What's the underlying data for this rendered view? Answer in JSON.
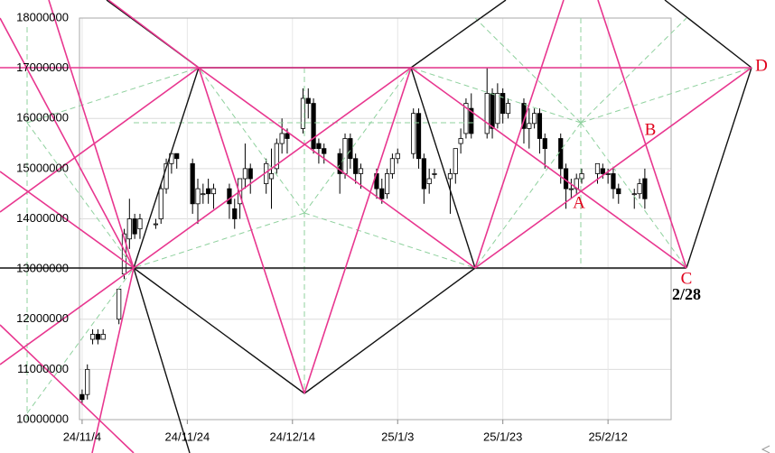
{
  "chart_data": {
    "type": "candlestick",
    "x": [
      0,
      1,
      2,
      3,
      4,
      7,
      8,
      9,
      10,
      11,
      14,
      15,
      16,
      17,
      18,
      21,
      22,
      23,
      24,
      25,
      28,
      29,
      30,
      31,
      32,
      35,
      36,
      37,
      38,
      39,
      42,
      43,
      44,
      45,
      46,
      49,
      50,
      51,
      52,
      53,
      56,
      57,
      58,
      59,
      60,
      63,
      64,
      65,
      66,
      67,
      70,
      71,
      72,
      73,
      74,
      77,
      78,
      79,
      80,
      81,
      84,
      85,
      86,
      87,
      88,
      91,
      92,
      93,
      94,
      95,
      98,
      99,
      100,
      101,
      102,
      105,
      106,
      107
    ],
    "open": [
      10500000,
      10500000,
      11600000,
      11700000,
      11600000,
      12000000,
      12900000,
      13600000,
      14000000,
      13800000,
      13900000,
      14000000,
      14600000,
      15100000,
      15300000,
      15100000,
      14300000,
      14500000,
      14600000,
      14500000,
      14600000,
      14200000,
      14300000,
      14800000,
      15000000,
      14700000,
      14800000,
      15000000,
      15500000,
      15700000,
      15800000,
      16400000,
      16300000,
      15500000,
      15400000,
      15300000,
      14900000,
      15600000,
      15200000,
      14900000,
      14900000,
      14600000,
      14500000,
      14900000,
      15200000,
      15300000,
      16100000,
      15200000,
      14700000,
      14900000,
      14800000,
      14900000,
      15500000,
      15700000,
      16200000,
      15700000,
      16500000,
      15900000,
      16500000,
      16100000,
      16300000,
      15800000,
      15900000,
      16100000,
      15600000,
      15600000,
      15000000,
      14600000,
      14600000,
      14800000,
      14900000,
      15000000,
      14900000,
      14900000,
      14600000,
      14500000,
      14500000,
      14800000
    ],
    "high": [
      10600000,
      11100000,
      11800000,
      11800000,
      11800000,
      12600000,
      13800000,
      14400000,
      14100000,
      14100000,
      14000000,
      14700000,
      15200000,
      15300000,
      15300000,
      15200000,
      14800000,
      14700000,
      14800000,
      14700000,
      14700000,
      14400000,
      14800000,
      15500000,
      15100000,
      15200000,
      15400000,
      15600000,
      16000000,
      15800000,
      16600000,
      16600000,
      16400000,
      15600000,
      15500000,
      15400000,
      15700000,
      15700000,
      15300000,
      15100000,
      15000000,
      14800000,
      15000000,
      15300000,
      15400000,
      16200000,
      16200000,
      15300000,
      15000000,
      15000000,
      15000000,
      15400000,
      15800000,
      16400000,
      16500000,
      17000000,
      16600000,
      16700000,
      16600000,
      16400000,
      16400000,
      16200000,
      16200000,
      16200000,
      15700000,
      15700000,
      15100000,
      14800000,
      14900000,
      15000000,
      15100000,
      15100000,
      15000000,
      15000000,
      14700000,
      14600000,
      14800000,
      15000000
    ],
    "low": [
      10300000,
      10400000,
      11500000,
      11500000,
      11600000,
      11900000,
      12800000,
      13400000,
      13600000,
      13600000,
      13800000,
      13900000,
      14500000,
      14900000,
      15000000,
      14100000,
      13900000,
      14300000,
      14300000,
      14200000,
      14000000,
      13800000,
      14000000,
      14600000,
      14500000,
      14500000,
      14200000,
      14900000,
      15300000,
      15300000,
      15700000,
      16000000,
      15300000,
      15100000,
      15100000,
      14500000,
      14800000,
      15000000,
      14700000,
      14600000,
      14400000,
      14300000,
      14400000,
      14800000,
      15100000,
      15200000,
      15000000,
      14300000,
      14500000,
      14800000,
      14100000,
      14700000,
      15300000,
      15600000,
      15600000,
      15600000,
      15600000,
      15800000,
      15900000,
      16000000,
      15500000,
      15400000,
      15800000,
      15300000,
      15000000,
      14700000,
      14200000,
      14400000,
      14500000,
      14700000,
      14700000,
      14800000,
      14700000,
      14400000,
      14300000,
      14200000,
      14400000,
      14200000
    ],
    "close": [
      10400000,
      11000000,
      11700000,
      11600000,
      11700000,
      12600000,
      13700000,
      14000000,
      13700000,
      14000000,
      13900000,
      14600000,
      15100000,
      15300000,
      15200000,
      14300000,
      14600000,
      14500000,
      14500000,
      14600000,
      14300000,
      14000000,
      14800000,
      15000000,
      14800000,
      15100000,
      14900000,
      15500000,
      15700000,
      15600000,
      16400000,
      16300000,
      15400000,
      15400000,
      15300000,
      14900000,
      15600000,
      15200000,
      14900000,
      15000000,
      14600000,
      14400000,
      14900000,
      15200000,
      15300000,
      16100000,
      15200000,
      14600000,
      14800000,
      14900000,
      14900000,
      15400000,
      15600000,
      16300000,
      15700000,
      16500000,
      15800000,
      16500000,
      16100000,
      16300000,
      15800000,
      15900000,
      16100000,
      15600000,
      15400000,
      15000000,
      14600000,
      14600000,
      14800000,
      14900000,
      15100000,
      14900000,
      14900000,
      14600000,
      14500000,
      14500000,
      14700000,
      14400000
    ],
    "up_color": "#ffffff",
    "down_color": "#000000",
    "xlim": [
      -0.5,
      112
    ],
    "xticks": [
      {
        "value": 0,
        "label": "24/11/4"
      },
      {
        "value": 20,
        "label": "24/11/24"
      },
      {
        "value": 40,
        "label": "24/12/14"
      },
      {
        "value": 60,
        "label": "25/1/3"
      },
      {
        "value": 80,
        "label": "25/1/23"
      },
      {
        "value": 100,
        "label": "25/2/12"
      }
    ],
    "ylim": [
      10000000,
      18000000
    ],
    "yticks": [
      10000000,
      11000000,
      12000000,
      13000000,
      14000000,
      15000000,
      16000000,
      17000000,
      18000000
    ],
    "grid": true,
    "annotations": [
      "A",
      "B",
      "C",
      "D",
      "2/28"
    ]
  }
}
